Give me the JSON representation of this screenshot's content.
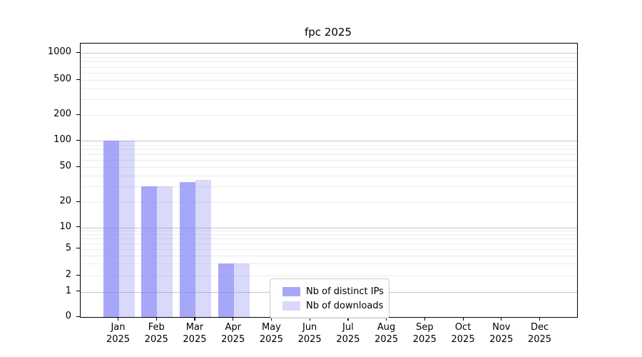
{
  "chart_data": {
    "type": "bar",
    "title": "fpc 2025",
    "yscale": "symlog",
    "ylim": [
      0,
      1280
    ],
    "grid": true,
    "legend_position": "inside lower-center",
    "ytick_values": [
      1000,
      500,
      200,
      100,
      50,
      20,
      10,
      5,
      2,
      1,
      0
    ],
    "ytick_labels": [
      "1000",
      "500",
      "200",
      "100",
      "50",
      "20",
      "10",
      "5",
      "2",
      "1",
      "0"
    ],
    "major_gridline_values": [
      1,
      10,
      100,
      1000
    ],
    "minor_gridline_values": [
      2,
      3,
      4,
      5,
      6,
      7,
      8,
      9,
      20,
      30,
      40,
      50,
      60,
      70,
      80,
      90,
      200,
      300,
      400,
      500,
      600,
      700,
      800,
      900
    ],
    "categories": [
      "Jan 2025",
      "Feb 2025",
      "Mar 2025",
      "Apr 2025",
      "May 2025",
      "Jun 2025",
      "Jul 2025",
      "Aug 2025",
      "Sep 2025",
      "Oct 2025",
      "Nov 2025",
      "Dec 2025"
    ],
    "x_tick_months": [
      "Jan",
      "Feb",
      "Mar",
      "Apr",
      "May",
      "Jun",
      "Jul",
      "Aug",
      "Sep",
      "Oct",
      "Nov",
      "Dec"
    ],
    "x_tick_year": "2025",
    "series": [
      {
        "name": "Nb of distinct IPs",
        "base_color": "#8282F6",
        "alpha": 0.7,
        "values": [
          100,
          30,
          34,
          3,
          0,
          0,
          0,
          0,
          0,
          0,
          0,
          0
        ]
      },
      {
        "name": "Nb of downloads",
        "base_color": "#8282F6",
        "alpha": 0.3,
        "values": [
          100,
          30,
          36,
          3,
          0,
          0,
          0,
          0,
          0,
          0,
          0,
          0
        ]
      }
    ],
    "colors": {
      "axis": "#000000",
      "major_grid": "#c6c6c6",
      "minor_grid": "#ebebeb",
      "background": "#ffffff",
      "legend_border": "#cccccc"
    }
  }
}
